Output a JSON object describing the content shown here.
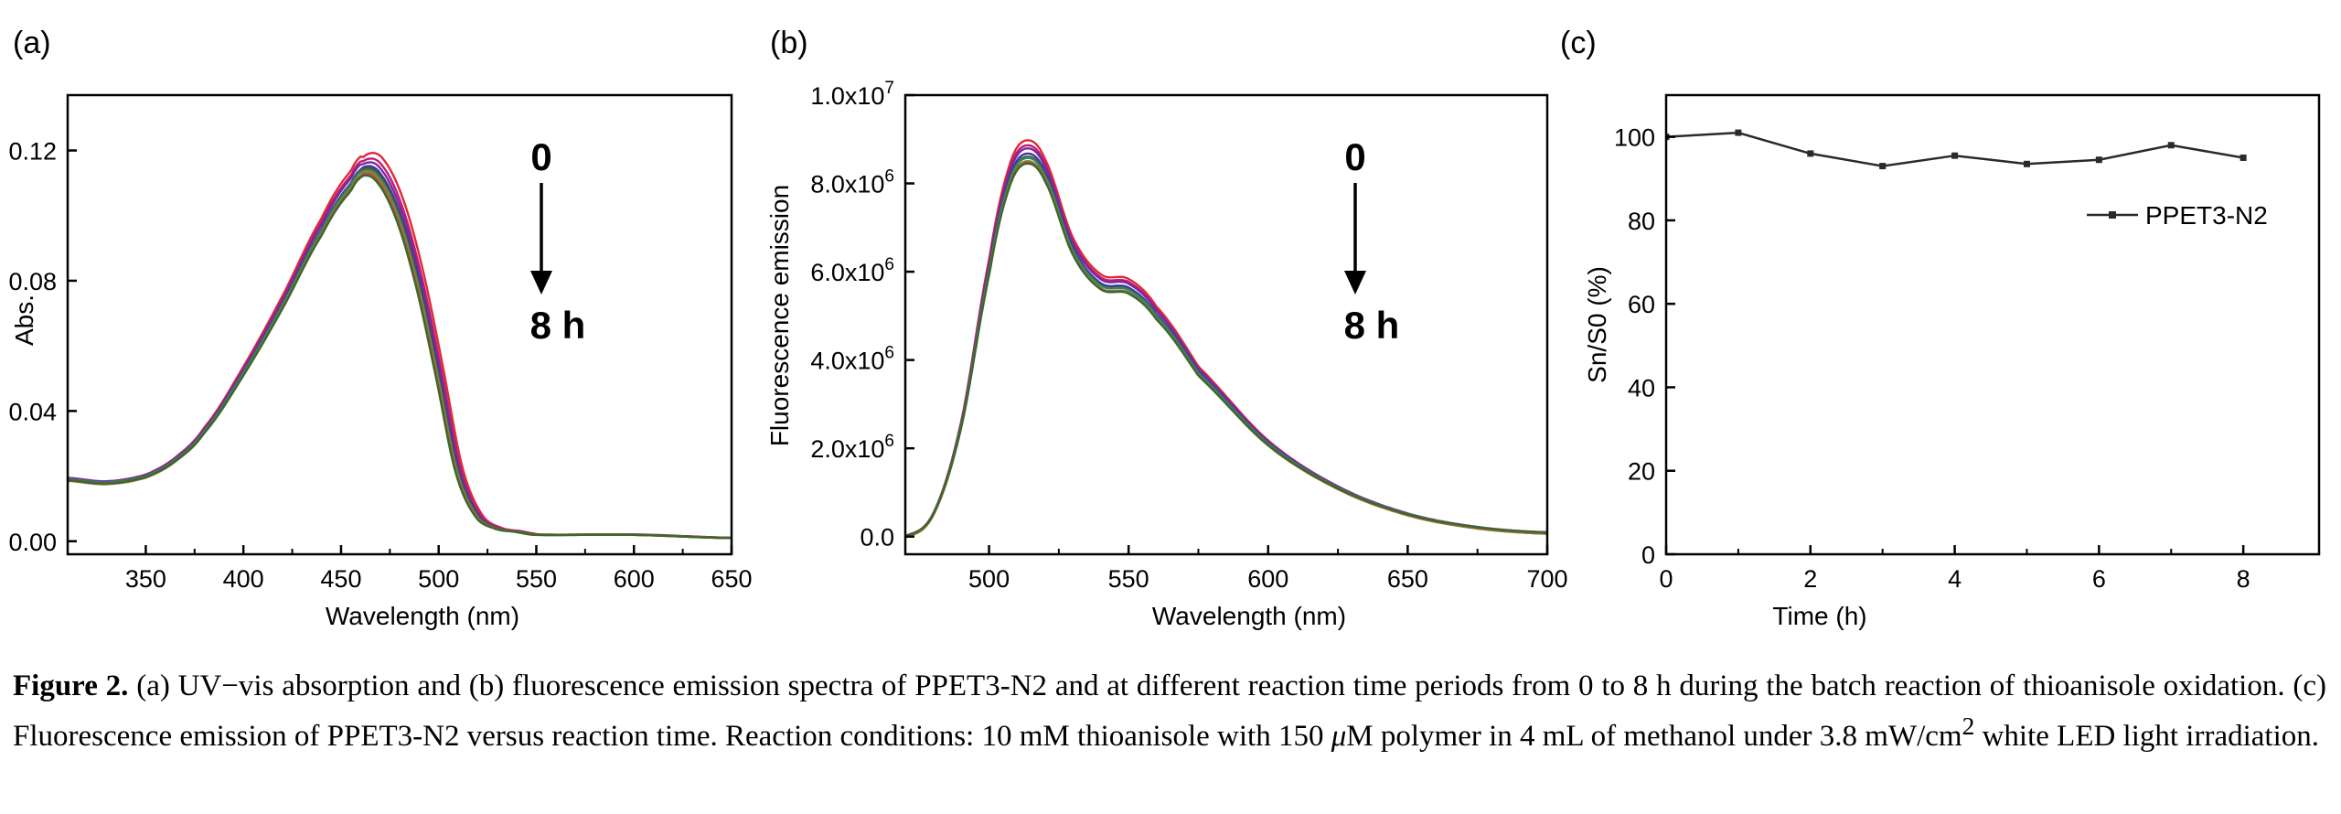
{
  "figure": {
    "caption": {
      "label": "Figure 2.",
      "line1": "(a) UV−vis absorption and (b) fluorescence emission spectra of PPET3-N2 and at different reaction time periods from 0 to 8 h during",
      "line2": "the batch reaction of thioanisole oxidation. (c) Fluorescence emission of PPET3-N2 versus reaction time. Reaction conditions: 10 mM thioanisole",
      "line3_pre": "with 150",
      "line3_mu": "μ",
      "line3_mid": "M polymer in 4 mL of methanol under 3.8 mW/cm",
      "line3_sup": "2",
      "line3_post": "white LED light irradiation."
    }
  },
  "chart_data": [
    {
      "panel": "(a)",
      "type": "line",
      "xlabel": "Wavelength (nm)",
      "ylabel": "Abs.",
      "xlim": [
        310,
        650
      ],
      "ylim": [
        -0.004,
        0.137
      ],
      "xticks": [
        350,
        400,
        450,
        500,
        550,
        600,
        650
      ],
      "yticks": [
        0.0,
        0.04,
        0.08,
        0.12
      ],
      "ytick_labels": [
        "0.00",
        "0.04",
        "0.08",
        "0.12"
      ],
      "annotation": {
        "start": "0",
        "end": "8 h"
      },
      "series_colors": [
        "#e02a35",
        "#c01a7a",
        "#7a2a9a",
        "#3a3aa8",
        "#5a4a3a",
        "#2a8a6a",
        "#8a8a2a",
        "#c04a4a",
        "#3a6a2a"
      ],
      "base_curve": {
        "x": [
          310,
          330,
          350,
          365,
          380,
          400,
          420,
          440,
          455,
          462,
          470,
          480,
          490,
          500,
          510,
          520,
          530,
          540,
          550,
          600,
          650
        ],
        "y": [
          0.019,
          0.018,
          0.02,
          0.025,
          0.034,
          0.052,
          0.073,
          0.096,
          0.11,
          0.115,
          0.113,
          0.101,
          0.08,
          0.052,
          0.022,
          0.008,
          0.004,
          0.003,
          0.002,
          0.002,
          0.001
        ]
      },
      "series_scale": [
        1.035,
        1.02,
        1.01,
        1.0,
        0.995,
        0.99,
        0.985,
        0.98,
        0.975
      ]
    },
    {
      "panel": "(b)",
      "type": "line",
      "xlabel": "Wavelength (nm)",
      "ylabel": "Fluorescence emission",
      "xlim": [
        470,
        700
      ],
      "ylim": [
        -400000,
        10000000
      ],
      "xticks": [
        500,
        550,
        600,
        650,
        700
      ],
      "yticks": [
        0,
        2000000,
        4000000,
        6000000,
        8000000,
        10000000
      ],
      "ytick_labels": [
        {
          "base": "0.0",
          "exp": ""
        },
        {
          "base": "2.0x10",
          "exp": "6"
        },
        {
          "base": "4.0x10",
          "exp": "6"
        },
        {
          "base": "6.0x10",
          "exp": "6"
        },
        {
          "base": "8.0x10",
          "exp": "6"
        },
        {
          "base": "1.0x10",
          "exp": "7"
        }
      ],
      "annotation": {
        "start": "0",
        "end": "8 h"
      },
      "series_colors": [
        "#e02a35",
        "#c01a7a",
        "#7a2a9a",
        "#3a3aa8",
        "#5a4a3a",
        "#2a8a6a",
        "#8a8a2a",
        "#c04a4a",
        "#3a6a2a"
      ],
      "base_curve": {
        "x": [
          470,
          480,
          490,
          500,
          507,
          513,
          520,
          530,
          540,
          550,
          560,
          575,
          600,
          625,
          650,
          675,
          700
        ],
        "y": [
          0,
          500000,
          2500000,
          6000000,
          8000000,
          8600000,
          8200000,
          6500000,
          5700000,
          5600000,
          5000000,
          3700000,
          2100000,
          1100000,
          500000,
          200000,
          80000
        ]
      },
      "series_scale": [
        1.045,
        1.03,
        1.02,
        1.01,
        1.0,
        0.995,
        0.99,
        0.985,
        0.98
      ]
    },
    {
      "panel": "(c)",
      "type": "line",
      "xlabel": "Time (h)",
      "ylabel": "Sn/S0 (%)",
      "xlim": [
        0,
        9.05
      ],
      "ylim": [
        0,
        110
      ],
      "xticks": [
        0,
        2,
        4,
        6,
        8
      ],
      "yticks": [
        0,
        20,
        40,
        60,
        80,
        100
      ],
      "legend_position": "upper-right",
      "series": [
        {
          "name": "PPET3-N2",
          "color": "#2a2a2a",
          "x": [
            0,
            1,
            2,
            3,
            4,
            5,
            6,
            7,
            8
          ],
          "y": [
            100,
            101,
            96,
            93,
            95.5,
            93.5,
            94.5,
            98,
            95
          ]
        }
      ]
    }
  ]
}
